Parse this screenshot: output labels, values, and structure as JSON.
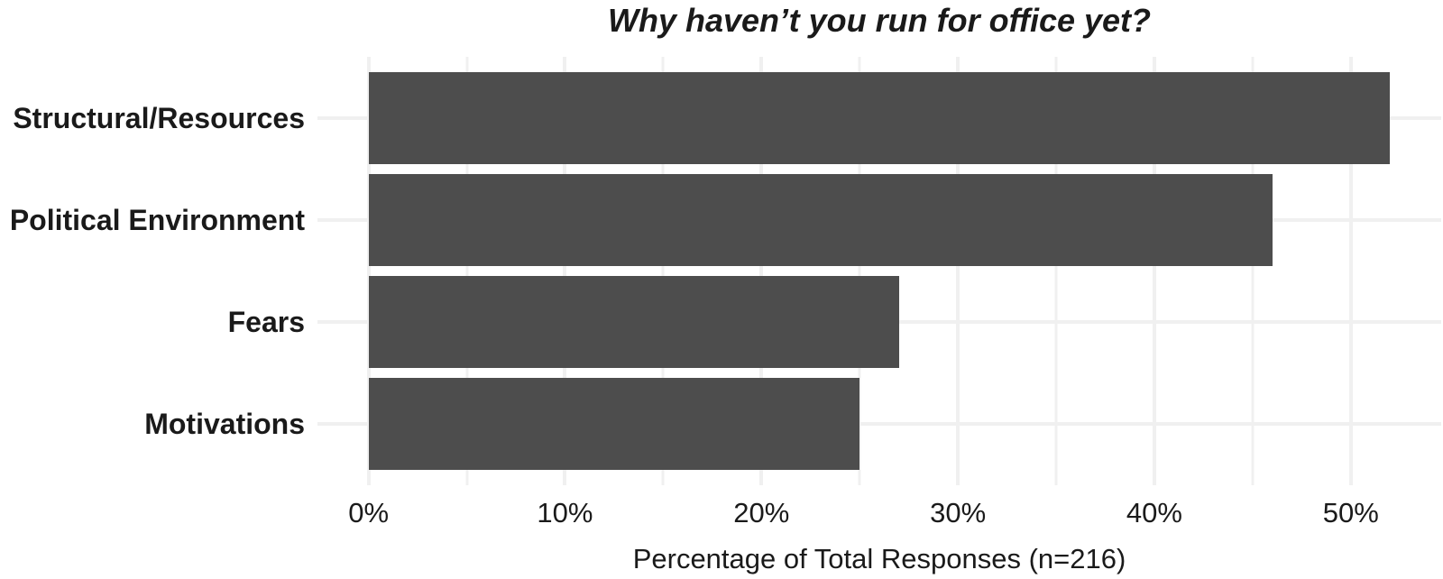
{
  "chart_data": {
    "type": "bar",
    "orientation": "horizontal",
    "title": "Why haven’t you run for office yet?",
    "categories": [
      "Structural/Resources",
      "Political Environment",
      "Fears",
      "Motivations"
    ],
    "values": [
      52,
      46,
      27,
      25
    ],
    "value_unit": "%",
    "xlabel": "Percentage of Total Responses (n=216)",
    "ylabel": "",
    "xticks": [
      0,
      10,
      20,
      30,
      40,
      50
    ],
    "xtick_labels": [
      "0%",
      "10%",
      "20%",
      "30%",
      "40%",
      "50%"
    ],
    "minor_grid_step": 5,
    "xlim": [
      -2.6,
      54.6
    ],
    "bar_baseline": 0,
    "grid": "on",
    "legend_position": "none",
    "colors": {
      "bar": "#4d4d4d",
      "grid": "#f0f0f0",
      "text": "#1a1a1a",
      "background": "#ffffff"
    }
  }
}
